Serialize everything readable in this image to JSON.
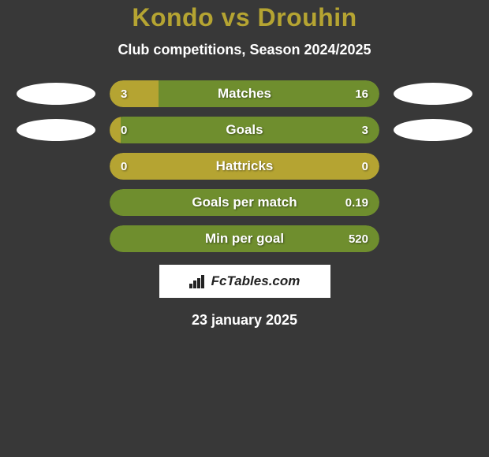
{
  "title_color": "#b5a432",
  "title": "Kondo vs Drouhin",
  "subtitle": "Club competitions, Season 2024/2025",
  "colors": {
    "left": "#b5a432",
    "right": "#6f8e2e",
    "badge_bg": "#ffffff"
  },
  "metrics": [
    {
      "label": "Matches",
      "left_value": "3",
      "right_value": "16",
      "left_pct": 18,
      "right_pct": 82,
      "show_left_badge": true,
      "show_right_badge": true
    },
    {
      "label": "Goals",
      "left_value": "0",
      "right_value": "3",
      "left_pct": 4,
      "right_pct": 96,
      "show_left_badge": true,
      "show_right_badge": true
    },
    {
      "label": "Hattricks",
      "left_value": "0",
      "right_value": "0",
      "left_pct": 100,
      "right_pct": 0,
      "show_left_badge": false,
      "show_right_badge": false
    },
    {
      "label": "Goals per match",
      "left_value": "",
      "right_value": "0.19",
      "left_pct": 0,
      "right_pct": 100,
      "show_left_badge": false,
      "show_right_badge": false
    },
    {
      "label": "Min per goal",
      "left_value": "",
      "right_value": "520",
      "left_pct": 0,
      "right_pct": 100,
      "show_left_badge": false,
      "show_right_badge": false
    }
  ],
  "footer_brand": "FcTables.com",
  "date": "23 january 2025"
}
